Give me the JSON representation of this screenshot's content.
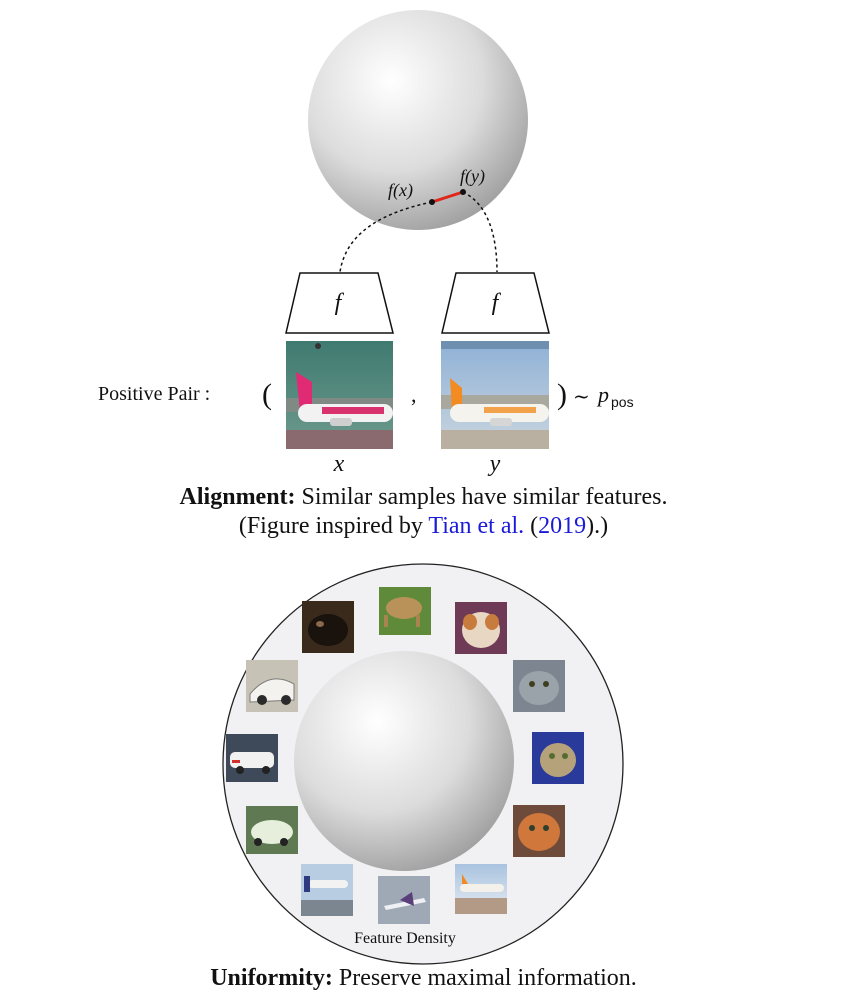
{
  "alignment": {
    "f_label_left": "f",
    "f_label_right": "f",
    "fx_label": "f(x)",
    "fy_label": "f(y)",
    "positive_pair_label": "Positive Pair :",
    "open_paren": "(",
    "comma": ",",
    "close_paren": ")",
    "dist_tilde": "~",
    "dist_p": "p",
    "dist_sub": "pos",
    "x_label": "x",
    "y_label": "y",
    "image_x": "airplane-photo-x",
    "image_y": "airplane-photo-y",
    "segment_color": "#e0261b"
  },
  "caption_alignment": {
    "bold": "Alignment:",
    "text": " Similar samples have similar features.",
    "line2_pre": "(Figure inspired by ",
    "link_authors": "Tian et al.",
    "open": " (",
    "link_year": "2019",
    "line2_post": ").)"
  },
  "uniformity": {
    "feature_density_label": "Feature Density",
    "images": [
      "dog-photo",
      "dog-photo",
      "dog-photo",
      "cat-photo",
      "cat-photo",
      "cat-photo",
      "airplane-photo",
      "airplane-photo",
      "airplane-photo",
      "car-photo",
      "car-photo",
      "car-photo"
    ]
  },
  "caption_uniformity": {
    "bold": "Uniformity:",
    "text": " Preserve maximal information."
  }
}
